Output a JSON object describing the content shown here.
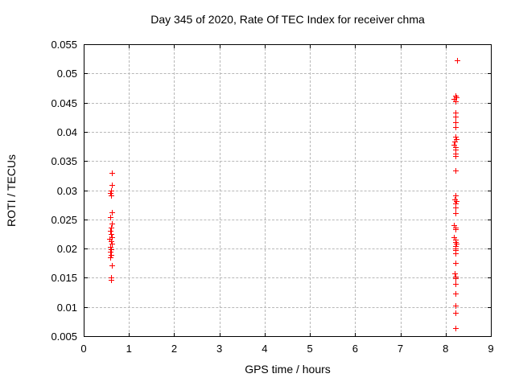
{
  "chart_data": {
    "type": "scatter",
    "title": "Day 345 of 2020, Rate Of TEC Index for receiver chma",
    "xlabel": "GPS time / hours",
    "ylabel": "ROTI / TECUs",
    "xlim": [
      0,
      9
    ],
    "ylim": [
      0.005,
      0.055
    ],
    "grid": true,
    "legend": "none",
    "marker": "plus",
    "marker_color": "#ff0000",
    "grid_color": "#b8b8b8",
    "border_color": "#000000",
    "xticks": [
      {
        "v": 0,
        "label": "0"
      },
      {
        "v": 1,
        "label": "1"
      },
      {
        "v": 2,
        "label": "2"
      },
      {
        "v": 3,
        "label": "3"
      },
      {
        "v": 4,
        "label": "4"
      },
      {
        "v": 5,
        "label": "5"
      },
      {
        "v": 6,
        "label": "6"
      },
      {
        "v": 7,
        "label": "7"
      },
      {
        "v": 8,
        "label": "8"
      },
      {
        "v": 9,
        "label": "9"
      }
    ],
    "yticks": [
      {
        "v": 0.005,
        "label": "0.005"
      },
      {
        "v": 0.01,
        "label": "0.01"
      },
      {
        "v": 0.015,
        "label": "0.015"
      },
      {
        "v": 0.02,
        "label": "0.02"
      },
      {
        "v": 0.025,
        "label": "0.025"
      },
      {
        "v": 0.03,
        "label": "0.03"
      },
      {
        "v": 0.035,
        "label": "0.035"
      },
      {
        "v": 0.04,
        "label": "0.04"
      },
      {
        "v": 0.045,
        "label": "0.045"
      },
      {
        "v": 0.05,
        "label": "0.05"
      },
      {
        "v": 0.055,
        "label": "0.055"
      }
    ],
    "series": [
      {
        "name": "ROTI",
        "points": [
          [
            0.62,
            0.033
          ],
          [
            0.62,
            0.0309
          ],
          [
            0.61,
            0.03
          ],
          [
            0.59,
            0.0295
          ],
          [
            0.61,
            0.0291
          ],
          [
            0.62,
            0.0262
          ],
          [
            0.59,
            0.0254
          ],
          [
            0.62,
            0.0243
          ],
          [
            0.61,
            0.0236
          ],
          [
            0.59,
            0.0231
          ],
          [
            0.61,
            0.0225
          ],
          [
            0.62,
            0.0219
          ],
          [
            0.57,
            0.0216
          ],
          [
            0.61,
            0.0212
          ],
          [
            0.62,
            0.0208
          ],
          [
            0.59,
            0.0203
          ],
          [
            0.61,
            0.0199
          ],
          [
            0.59,
            0.0195
          ],
          [
            0.61,
            0.0189
          ],
          [
            0.59,
            0.0185
          ],
          [
            0.62,
            0.0171
          ],
          [
            0.61,
            0.0151
          ],
          [
            0.61,
            0.0147
          ],
          [
            8.25,
            0.0523
          ],
          [
            8.21,
            0.0462
          ],
          [
            8.23,
            0.0459
          ],
          [
            8.18,
            0.0456
          ],
          [
            8.22,
            0.0452
          ],
          [
            8.22,
            0.0433
          ],
          [
            8.22,
            0.0426
          ],
          [
            8.22,
            0.0417
          ],
          [
            8.22,
            0.0408
          ],
          [
            8.21,
            0.0392
          ],
          [
            8.23,
            0.0388
          ],
          [
            8.2,
            0.0384
          ],
          [
            8.18,
            0.0378
          ],
          [
            8.22,
            0.0374
          ],
          [
            8.21,
            0.037
          ],
          [
            8.22,
            0.0363
          ],
          [
            8.22,
            0.0358
          ],
          [
            8.22,
            0.0334
          ],
          [
            8.22,
            0.0291
          ],
          [
            8.2,
            0.0284
          ],
          [
            8.23,
            0.0281
          ],
          [
            8.21,
            0.0277
          ],
          [
            8.22,
            0.027
          ],
          [
            8.22,
            0.0261
          ],
          [
            8.18,
            0.024
          ],
          [
            8.22,
            0.0236
          ],
          [
            8.21,
            0.0233
          ],
          [
            8.19,
            0.0219
          ],
          [
            8.22,
            0.0215
          ],
          [
            8.21,
            0.0211
          ],
          [
            8.23,
            0.0208
          ],
          [
            8.21,
            0.0204
          ],
          [
            8.22,
            0.02
          ],
          [
            8.21,
            0.0197
          ],
          [
            8.22,
            0.0192
          ],
          [
            8.22,
            0.0176
          ],
          [
            8.2,
            0.0157
          ],
          [
            8.22,
            0.0152
          ],
          [
            8.21,
            0.0149
          ],
          [
            8.22,
            0.0139
          ],
          [
            8.22,
            0.0123
          ],
          [
            8.22,
            0.0102
          ],
          [
            8.22,
            0.009
          ],
          [
            8.22,
            0.0064
          ]
        ]
      }
    ]
  }
}
